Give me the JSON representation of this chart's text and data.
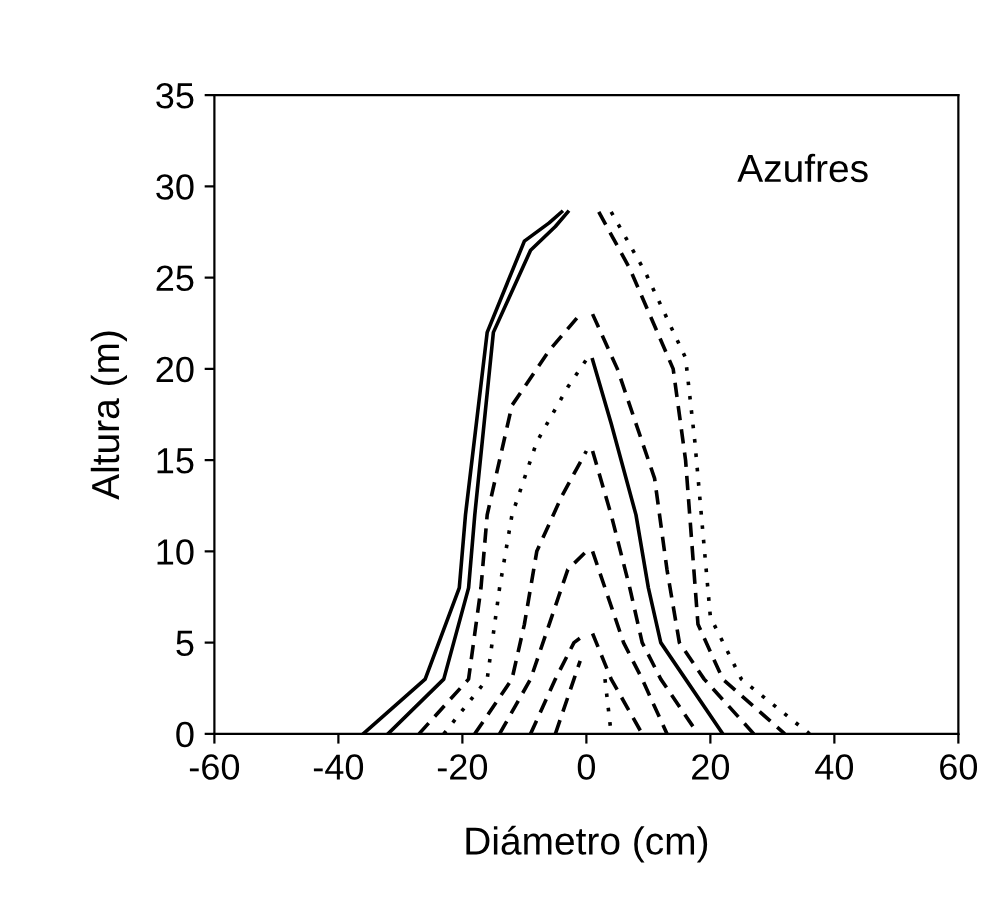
{
  "chart_data": {
    "type": "line",
    "xlabel": "Diámetro (cm)",
    "ylabel": "Altura (m)",
    "annotations": [
      "Azufres"
    ],
    "xlim": [
      -60,
      60
    ],
    "xticks": [
      -60,
      -40,
      -20,
      0,
      20,
      40,
      60
    ],
    "ylim": [
      0,
      35
    ],
    "yticks": [
      0,
      5,
      10,
      15,
      20,
      25,
      30,
      35
    ],
    "grid": false,
    "legend": false,
    "marker": "none",
    "series": [
      {
        "color": "#000000",
        "line_style": "solid",
        "x": [
          -36,
          -26,
          -20.5,
          -19.5,
          -16,
          -10,
          -6,
          -4
        ],
        "values": [
          0,
          3,
          8,
          12,
          22,
          27,
          28,
          28.6
        ]
      },
      {
        "color": "#000000",
        "line_style": "dotted",
        "x": [
          4,
          9.5,
          16,
          17.5,
          20,
          25,
          36
        ],
        "values": [
          28.6,
          25.3,
          20.6,
          16,
          6.4,
          3,
          0
        ]
      },
      {
        "color": "#000000",
        "line_style": "solid",
        "x": [
          -32,
          -23,
          -19,
          -18,
          -15,
          -9,
          -5,
          -3
        ],
        "values": [
          0,
          3,
          8,
          12,
          22,
          26.5,
          27.8,
          28.6
        ]
      },
      {
        "color": "#000000",
        "line_style": "dashed",
        "x": [
          2,
          7,
          14,
          16,
          18,
          22,
          32
        ],
        "values": [
          28.6,
          25.5,
          20,
          15,
          6,
          3,
          0
        ]
      },
      {
        "color": "#000000",
        "line_style": "dashed",
        "x": [
          -27,
          -19,
          -17,
          -16,
          -12,
          -6,
          -1
        ],
        "values": [
          0,
          3,
          8,
          12,
          18,
          21,
          23
        ]
      },
      {
        "color": "#000000",
        "line_style": "dashed",
        "x": [
          1,
          5,
          11,
          13,
          15,
          19,
          27
        ],
        "values": [
          23,
          20,
          14,
          9,
          5,
          3,
          0
        ]
      },
      {
        "color": "#000000",
        "line_style": "dotted",
        "x": [
          -23,
          -16,
          -14,
          -12,
          -8,
          -3,
          0
        ],
        "values": [
          0,
          3,
          8,
          12,
          16,
          19,
          20.5
        ]
      },
      {
        "color": "#000000",
        "line_style": "solid",
        "x": [
          1,
          4,
          8,
          10,
          12,
          16,
          22
        ],
        "values": [
          20.5,
          17,
          12,
          8,
          5,
          3,
          0
        ]
      },
      {
        "color": "#000000",
        "line_style": "dashed",
        "x": [
          -18,
          -12,
          -10,
          -8,
          -4,
          0
        ],
        "values": [
          0,
          3,
          6,
          10,
          13,
          15.5
        ]
      },
      {
        "color": "#000000",
        "line_style": "dashed",
        "x": [
          1,
          4,
          7,
          9,
          12,
          18
        ],
        "values": [
          15.5,
          12,
          8,
          5,
          3,
          0
        ]
      },
      {
        "color": "#000000",
        "line_style": "dashed",
        "x": [
          -14,
          -9,
          -6,
          -3,
          0
        ],
        "values": [
          0,
          3,
          6,
          9,
          10
        ]
      },
      {
        "color": "#000000",
        "line_style": "dashed",
        "x": [
          1,
          3,
          6,
          9,
          13
        ],
        "values": [
          10,
          8,
          5,
          3,
          0
        ]
      },
      {
        "color": "#000000",
        "line_style": "dashed",
        "x": [
          -9,
          -5,
          -2,
          0
        ],
        "values": [
          0,
          3,
          5,
          5.5
        ]
      },
      {
        "color": "#000000",
        "line_style": "dashed",
        "x": [
          1,
          4,
          9
        ],
        "values": [
          5.5,
          3,
          0
        ]
      },
      {
        "color": "#000000",
        "line_style": "dashed",
        "x": [
          -5,
          -2,
          -1
        ],
        "values": [
          0,
          3,
          4
        ]
      },
      {
        "color": "#000000",
        "line_style": "dotted",
        "x": [
          3,
          3.5,
          4
        ],
        "values": [
          3,
          1.5,
          0
        ]
      }
    ]
  }
}
